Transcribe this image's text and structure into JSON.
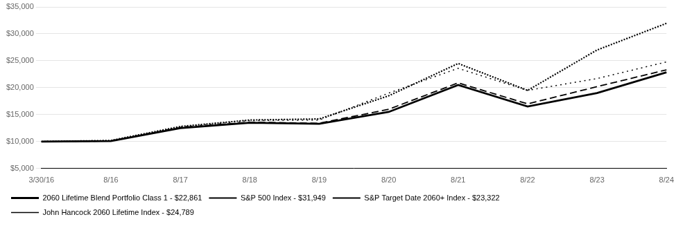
{
  "chart_data": {
    "type": "line",
    "categories": [
      "3/30/16",
      "8/16",
      "8/17",
      "8/18",
      "8/19",
      "8/20",
      "8/21",
      "8/22",
      "8/23",
      "8/24"
    ],
    "series": [
      {
        "name": "2060 Lifetime Blend Portfolio Class 1 - $22,861",
        "color": "#000000",
        "line_style": "solid",
        "values": [
          10000,
          10100,
          12500,
          13500,
          13300,
          15500,
          20500,
          16500,
          19000,
          22861
        ]
      },
      {
        "name": "S&P 500 Index - $31,949",
        "color": "#000000",
        "line_style": "densely dotted",
        "values": [
          10000,
          10200,
          12800,
          14000,
          14200,
          18500,
          24500,
          19500,
          27000,
          31949
        ]
      },
      {
        "name": "S&P Target Date 2060+ Index - $23,322",
        "color": "#000000",
        "line_style": "dashed",
        "values": [
          10000,
          10100,
          12600,
          13600,
          13400,
          16000,
          20900,
          17000,
          20200,
          23322
        ]
      },
      {
        "name": "John Hancock 2060 Lifetime Index - $24,789",
        "color": "#000000",
        "line_style": "dotted",
        "values": [
          10000,
          10100,
          12700,
          13900,
          14000,
          19000,
          23600,
          19500,
          21700,
          24789
        ]
      }
    ],
    "ylim": [
      5000,
      35000
    ],
    "yticks": [
      {
        "value": 5000,
        "label": "$5,000"
      },
      {
        "value": 10000,
        "label": "$10,000"
      },
      {
        "value": 15000,
        "label": "$15,000"
      },
      {
        "value": 20000,
        "label": "$20,000"
      },
      {
        "value": 25000,
        "label": "$25,000"
      },
      {
        "value": 30000,
        "label": "$30,000"
      },
      {
        "value": 35000,
        "label": "$35,000"
      }
    ],
    "grid": true,
    "legend": "bottom"
  }
}
